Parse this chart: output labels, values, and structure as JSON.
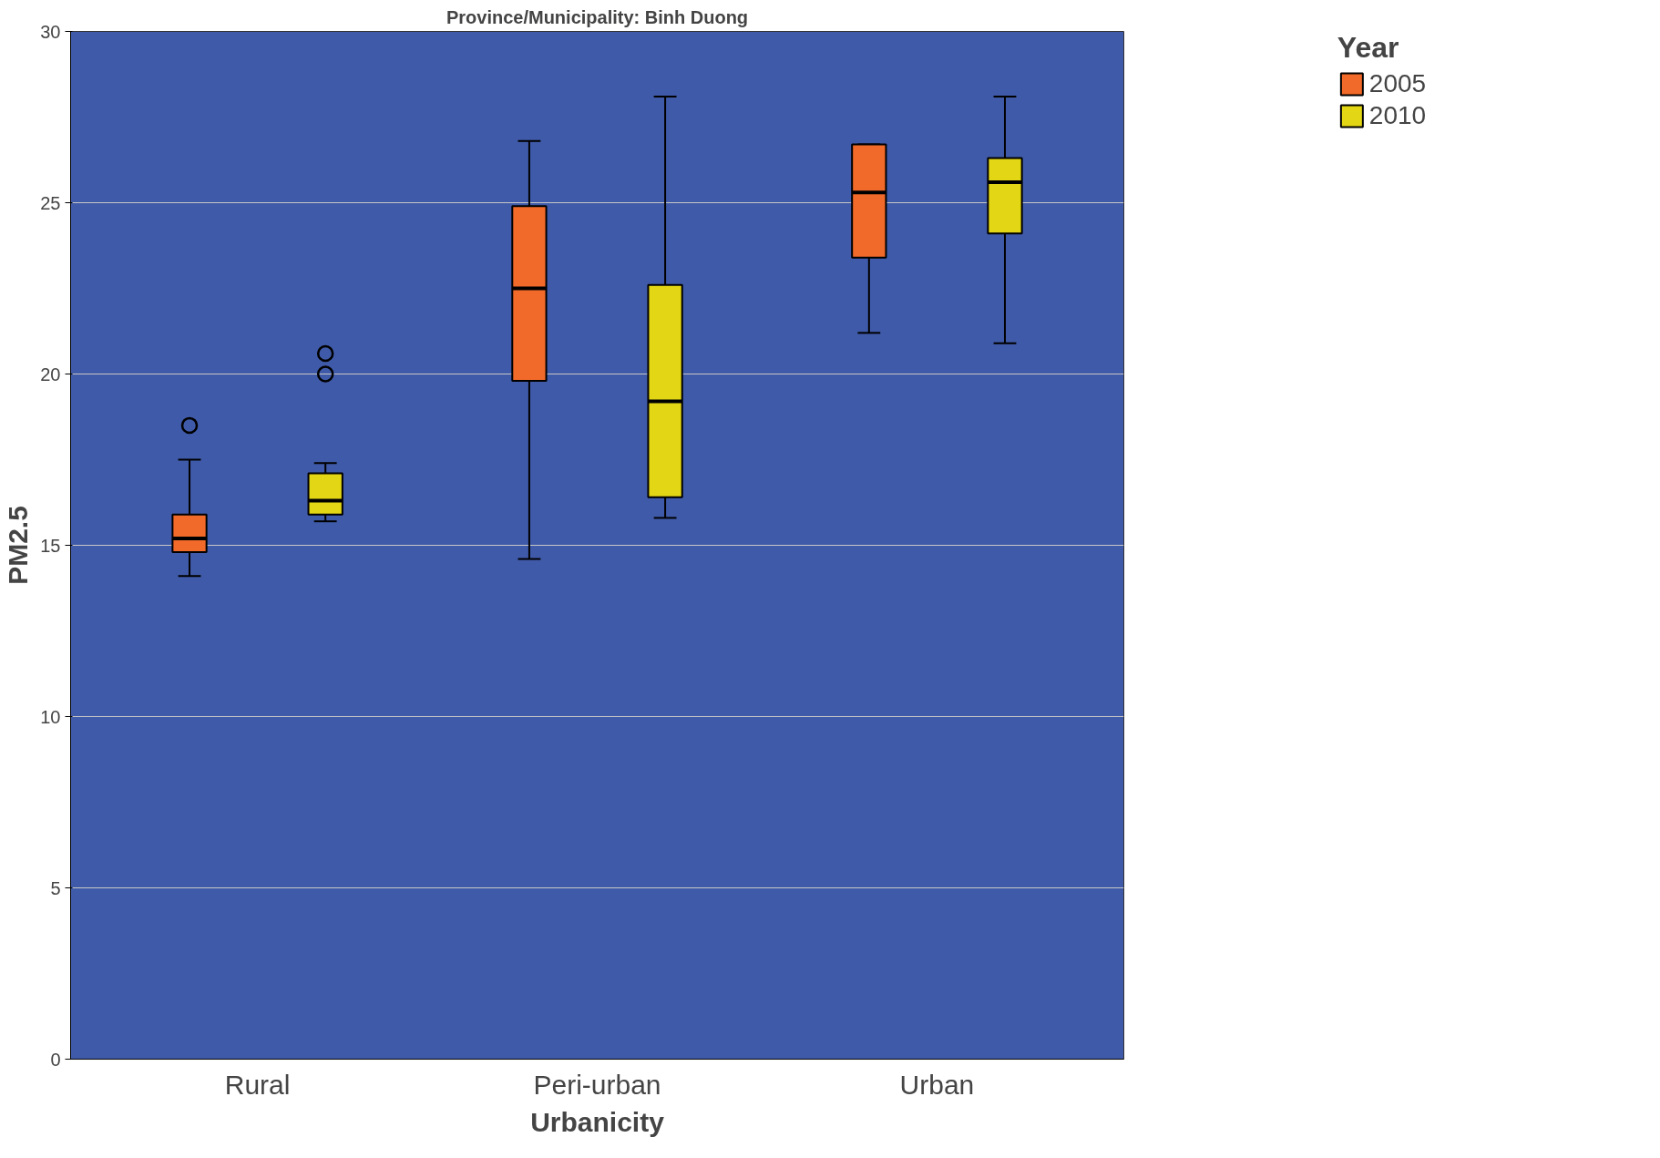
{
  "chart_data": {
    "type": "box",
    "title": "Province/Municipality: Binh Duong",
    "xlabel": "Urbanicity",
    "ylabel": "PM2.5",
    "legend_title": "Year",
    "categories": [
      "Rural",
      "Peri-urban",
      "Urban"
    ],
    "ylim": [
      0,
      30
    ],
    "yticks": [
      0,
      5,
      10,
      15,
      20,
      25,
      30
    ],
    "grid": "y",
    "legend": "top right",
    "series": [
      {
        "name": "2005",
        "color": "#f26a2a",
        "boxes": [
          {
            "low": 14.1,
            "q1": 14.8,
            "median": 15.2,
            "q3": 15.9,
            "high": 17.5,
            "outliers": [
              18.5
            ]
          },
          {
            "low": 14.6,
            "q1": 19.8,
            "median": 22.5,
            "q3": 24.9,
            "high": 26.8
          },
          {
            "low": 21.2,
            "q1": 23.4,
            "median": 25.3,
            "q3": 26.7,
            "high": 26.7
          }
        ]
      },
      {
        "name": "2010",
        "color": "#e3d614",
        "boxes": [
          {
            "low": 15.7,
            "q1": 15.9,
            "median": 16.3,
            "q3": 17.1,
            "high": 17.4,
            "outliers": [
              20.0,
              20.6
            ]
          },
          {
            "low": 15.8,
            "q1": 16.4,
            "median": 19.2,
            "q3": 22.6,
            "high": 28.1
          },
          {
            "low": 20.9,
            "q1": 24.1,
            "median": 25.6,
            "q3": 26.3,
            "high": 28.1
          }
        ]
      }
    ]
  }
}
